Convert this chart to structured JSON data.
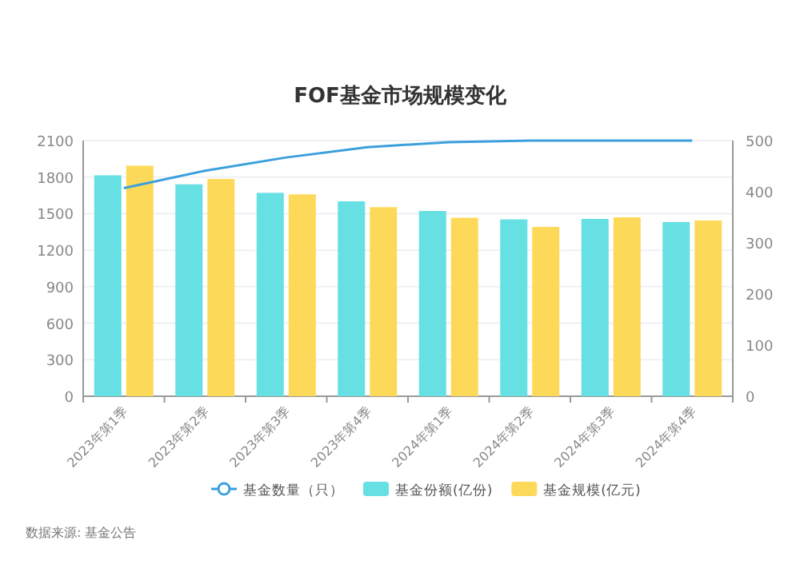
{
  "chart_data": {
    "type": "bar",
    "title": "FOF基金市场规模变化",
    "categories": [
      "2023年第1季",
      "2023年第2季",
      "2023年第3季",
      "2023年第4季",
      "2024年第1季",
      "2024年第2季",
      "2024年第3季",
      "2024年第4季"
    ],
    "series": [
      {
        "name": "基金数量（只）",
        "type": "line",
        "axis": "y2",
        "color": "#3ba0dc",
        "values": [
          407,
          441,
          467,
          487,
          497,
          500,
          500,
          500
        ]
      },
      {
        "name": "基金份额(亿份)",
        "color": "#66e0e2",
        "values": [
          1815,
          1741,
          1671,
          1601,
          1522,
          1453,
          1457,
          1431
        ]
      },
      {
        "name": "基金规模(亿元)",
        "color": "#fdd95a",
        "values": [
          1894,
          1785,
          1658,
          1553,
          1466,
          1391,
          1470,
          1444
        ]
      }
    ],
    "ylim": [
      0,
      2100
    ],
    "yticks": [
      0,
      300,
      600,
      900,
      1200,
      1500,
      1800,
      2100
    ],
    "y2lim": [
      0,
      500
    ],
    "y2ticks": [
      0,
      100,
      200,
      300,
      400,
      500
    ],
    "grid": "y",
    "legend": "bottom",
    "annotations": [
      "数据来源: 基金公告"
    ]
  }
}
